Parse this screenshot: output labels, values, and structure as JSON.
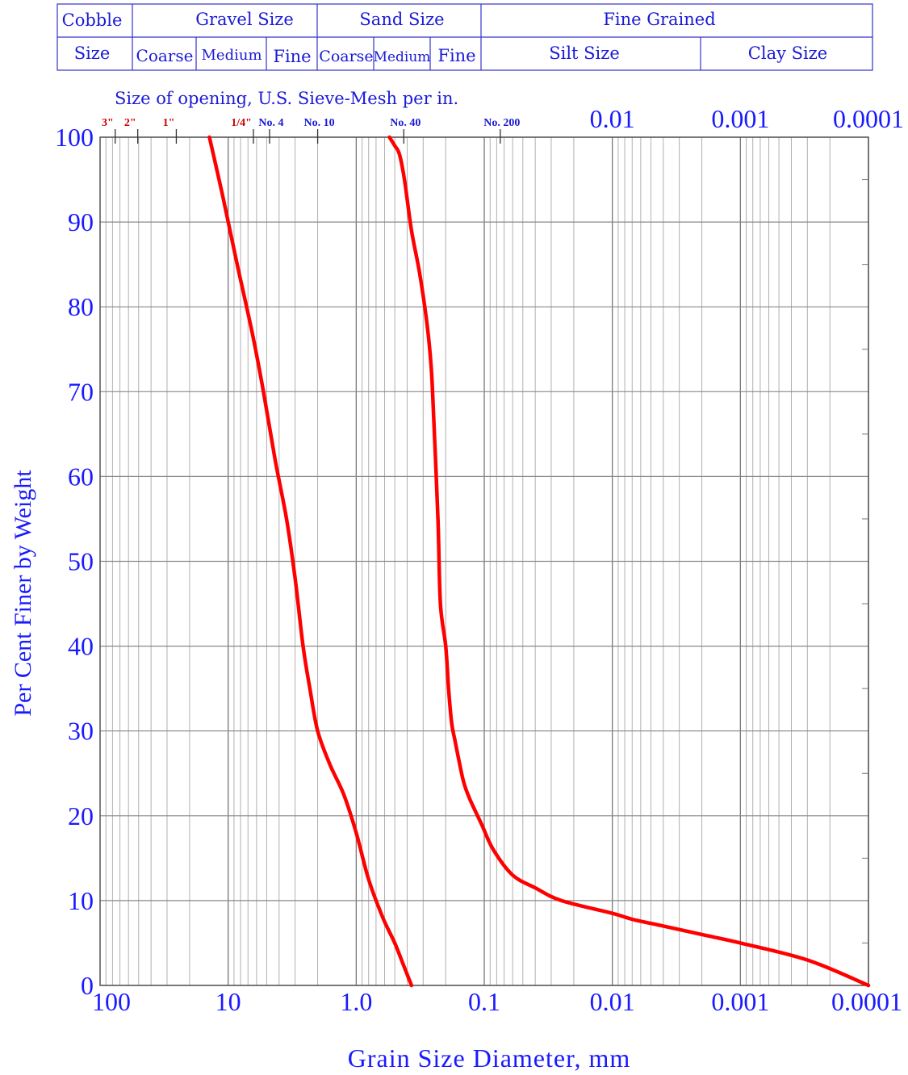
{
  "classification": {
    "cobble": "Cobble",
    "size": "Size",
    "gravel": "Gravel Size",
    "sand": "Sand Size",
    "fine_grained": "Fine Grained",
    "gravel_coarse": "Coarse",
    "gravel_medium": "Medium",
    "gravel_fine": "Fine",
    "sand_coarse": "Coarse",
    "sand_medium": "Medium",
    "sand_fine": "Fine",
    "silt": "Silt Size",
    "clay": "Clay Size"
  },
  "sieve": {
    "title": "Size of opening, U.S. Sieve-Mesh per in.",
    "openings": [
      {
        "label": "3\"",
        "size_mm": 76.2,
        "color": "#cc0000"
      },
      {
        "label": "2\"",
        "size_mm": 50.8,
        "color": "#cc0000"
      },
      {
        "label": "1\"",
        "size_mm": 25.4,
        "color": "#cc0000"
      },
      {
        "label": "1/4\"",
        "size_mm": 6.35,
        "color": "#cc0000"
      },
      {
        "label": "No. 4",
        "size_mm": 4.75,
        "color": "#1a1ad6"
      },
      {
        "label": "No. 10",
        "size_mm": 2.0,
        "color": "#1a1ad6"
      },
      {
        "label": "No. 40",
        "size_mm": 0.425,
        "color": "#1a1ad6"
      },
      {
        "label": "No. 200",
        "size_mm": 0.075,
        "color": "#1a1ad6"
      }
    ],
    "top_scale_labels": [
      {
        "label": "0.01",
        "value": 0.01
      },
      {
        "label": "0.001",
        "value": 0.001
      },
      {
        "label": "0.0001",
        "value": 0.0001
      }
    ]
  },
  "chart_data": {
    "type": "line",
    "title": "",
    "xlabel": "Grain Size Diameter, mm",
    "ylabel": "Per Cent Finer by Weight",
    "x_scale": "log",
    "x_reversed": true,
    "xlim": [
      100,
      0.0001
    ],
    "ylim": [
      0,
      100
    ],
    "grid": true,
    "x_tick_labels": [
      {
        "label": "100",
        "value": 100
      },
      {
        "label": "10",
        "value": 10
      },
      {
        "label": "1.0",
        "value": 1
      },
      {
        "label": "0.1",
        "value": 0.1
      },
      {
        "label": "0.01",
        "value": 0.01
      },
      {
        "label": "0.001",
        "value": 0.001
      },
      {
        "label": "0.0001",
        "value": 0.0001
      }
    ],
    "y_ticks": [
      0,
      10,
      20,
      30,
      40,
      50,
      60,
      70,
      80,
      90,
      100
    ],
    "series": [
      {
        "color": "#ff0000",
        "x": [
          14,
          11,
          8.5,
          6.5,
          5.3,
          4.3,
          3.5,
          3.0,
          2.6,
          2.3,
          2.0,
          1.6,
          1.25,
          1.0,
          0.8,
          0.62,
          0.5,
          0.43,
          0.37
        ],
        "y": [
          100,
          93,
          85,
          77,
          70,
          62,
          55,
          48,
          40,
          35,
          30,
          26,
          22.5,
          18,
          12.5,
          8,
          5,
          2.5,
          0
        ]
      },
      {
        "color": "#ff0000",
        "x": [
          0.55,
          0.5,
          0.46,
          0.42,
          0.37,
          0.32,
          0.28,
          0.26,
          0.25,
          0.23,
          0.22,
          0.2,
          0.19,
          0.18,
          0.17,
          0.16,
          0.145,
          0.13,
          0.105,
          0.085,
          0.06,
          0.04,
          0.025,
          0.01,
          0.007,
          0.004,
          0.002,
          0.001,
          0.0003,
          0.0001
        ],
        "y": [
          100,
          99,
          98,
          95,
          89,
          84,
          78,
          73,
          68,
          55,
          45,
          40,
          35,
          31,
          29,
          27,
          24,
          22,
          19,
          16,
          13,
          11.5,
          10,
          8.5,
          7.8,
          7,
          6,
          5,
          3,
          0
        ]
      }
    ]
  }
}
